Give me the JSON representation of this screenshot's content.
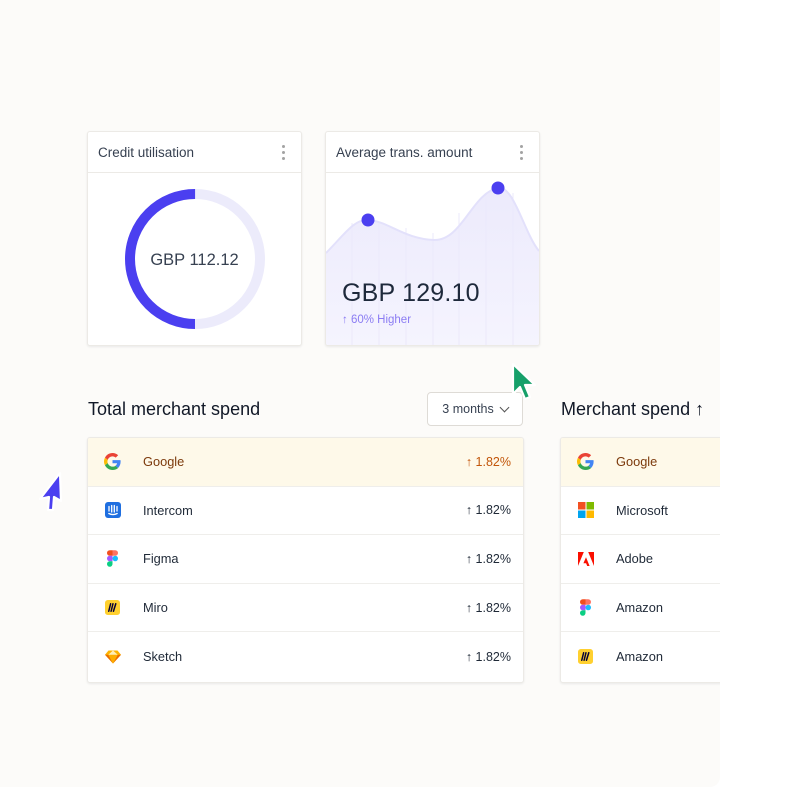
{
  "credit_card": {
    "title": "Credit utilisation",
    "value": "GBP 112.12",
    "utilisation": 0.5,
    "accent": "#4b3ff0"
  },
  "avg_card": {
    "title": "Average trans. amount",
    "value": "GBP 129.10",
    "change": "↑ 60% Higher"
  },
  "total_spend": {
    "title": "Total merchant spend",
    "range": "3 months",
    "rows": [
      {
        "name": "Google",
        "pct": "↑ 1.82%",
        "logo": "google-icon"
      },
      {
        "name": "Intercom",
        "pct": "↑ 1.82%",
        "logo": "intercom-icon"
      },
      {
        "name": "Figma",
        "pct": "↑ 1.82%",
        "logo": "figma-icon"
      },
      {
        "name": "Miro",
        "pct": "↑ 1.82%",
        "logo": "miro-icon"
      },
      {
        "name": "Sketch",
        "pct": "↑ 1.82%",
        "logo": "sketch-icon"
      }
    ]
  },
  "merchant_spend": {
    "title": "Merchant spend ↑",
    "rows": [
      {
        "name": "Google",
        "logo": "google-icon"
      },
      {
        "name": "Microsoft",
        "logo": "microsoft-icon"
      },
      {
        "name": "Adobe",
        "logo": "adobe-icon"
      },
      {
        "name": "Amazon",
        "logo": "figma-icon"
      },
      {
        "name": "Amazon",
        "logo": "miro-icon"
      }
    ]
  },
  "colors": {
    "accent": "#4b3ff0",
    "highlight_row": "#fef9e9",
    "green_cursor": "#16a06a",
    "blue_cursor": "#4b3ff0"
  }
}
